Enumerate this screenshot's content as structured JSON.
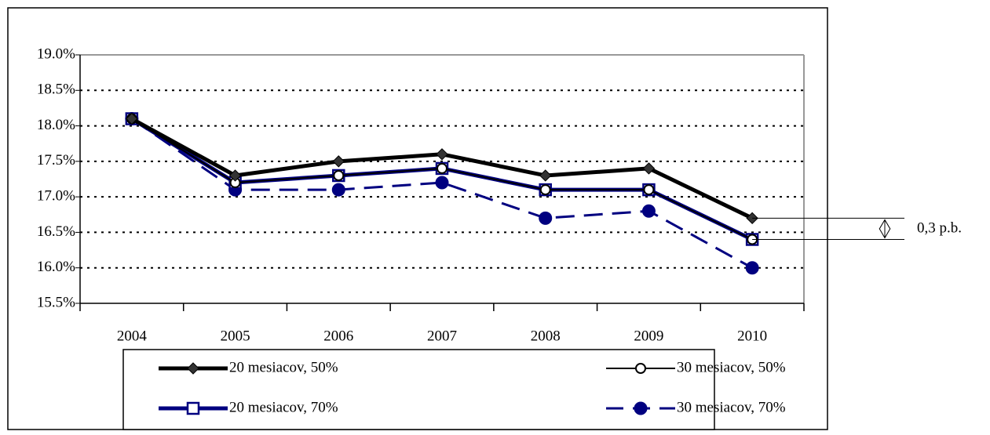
{
  "chart_data": {
    "type": "line",
    "categories": [
      "2004",
      "2005",
      "2006",
      "2007",
      "2008",
      "2009",
      "2010"
    ],
    "ylim": [
      15.5,
      19.0
    ],
    "yticks": [
      {
        "value": 15.5,
        "label": "15.5%"
      },
      {
        "value": 16.0,
        "label": "16.0%"
      },
      {
        "value": 16.5,
        "label": "16.5%"
      },
      {
        "value": 17.0,
        "label": "17.0%"
      },
      {
        "value": 17.5,
        "label": "17.5%"
      },
      {
        "value": 18.0,
        "label": "18.0%"
      },
      {
        "value": 18.5,
        "label": "18.5%"
      },
      {
        "value": 19.0,
        "label": "19.0%"
      }
    ],
    "grid": true,
    "legend": "bottom",
    "series": [
      {
        "name": "20 mesiacov, 50%",
        "color": "#000000",
        "line_width": 5,
        "dash": "solid",
        "marker": "diamond",
        "values": [
          18.1,
          17.3,
          17.5,
          17.6,
          17.3,
          17.4,
          16.7
        ]
      },
      {
        "name": "30 mesiacov, 50%",
        "color": "#000000",
        "line_width": 2,
        "dash": "solid",
        "marker": "open-circle",
        "values": [
          18.1,
          17.2,
          17.3,
          17.4,
          17.1,
          17.1,
          16.4
        ]
      },
      {
        "name": "20 mesiacov, 70%",
        "color": "#000080",
        "line_width": 5,
        "dash": "solid",
        "marker": "open-square",
        "values": [
          18.1,
          17.2,
          17.3,
          17.4,
          17.1,
          17.1,
          16.4
        ]
      },
      {
        "name": "30 mesiacov, 70%",
        "color": "#000080",
        "line_width": 3,
        "dash": "dashed",
        "marker": "filled-circle",
        "values": [
          18.1,
          17.1,
          17.1,
          17.2,
          16.7,
          16.8,
          16.0
        ]
      }
    ],
    "annotation": {
      "text": "0,3 p.b.",
      "y": [
        16.7,
        16.4
      ]
    }
  }
}
